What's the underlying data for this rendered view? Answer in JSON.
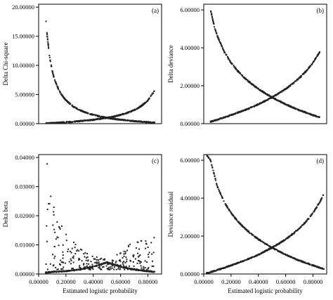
{
  "chart_data": [
    {
      "id": "a",
      "type": "scatter",
      "panel_label": "(a)",
      "xlabel": "",
      "ylabel": "Delta Chi-square",
      "xlim": [
        0.0,
        0.9
      ],
      "ylim": [
        0.0,
        20.5
      ],
      "yticks": [
        0,
        5,
        10,
        15,
        20
      ],
      "ytick_labels": [
        "0.00000",
        "5.00000",
        "10.00000",
        "15.00000",
        "20.00000"
      ],
      "xticks": [],
      "xtick_labels": [],
      "series": [
        {
          "curve": "chi_dec",
          "x": [
            0.05,
            0.06,
            0.08,
            0.1,
            0.12,
            0.15,
            0.18,
            0.2,
            0.25,
            0.3,
            0.35,
            0.4,
            0.45,
            0.5,
            0.55,
            0.6,
            0.65,
            0.7,
            0.75,
            0.8,
            0.85
          ],
          "y": [
            19.0,
            15.67,
            11.5,
            9.0,
            7.33,
            5.67,
            4.56,
            4.0,
            3.0,
            2.33,
            1.86,
            1.5,
            1.22,
            1.0,
            0.82,
            0.67,
            0.54,
            0.43,
            0.33,
            0.25,
            0.18
          ]
        },
        {
          "curve": "chi_inc",
          "x": [
            0.05,
            0.1,
            0.15,
            0.2,
            0.25,
            0.3,
            0.35,
            0.4,
            0.45,
            0.5,
            0.55,
            0.6,
            0.65,
            0.7,
            0.75,
            0.8,
            0.85
          ],
          "y": [
            0.05,
            0.11,
            0.18,
            0.25,
            0.33,
            0.43,
            0.54,
            0.67,
            0.82,
            1.0,
            1.22,
            1.5,
            1.86,
            2.33,
            3.0,
            4.0,
            5.67
          ]
        }
      ]
    },
    {
      "id": "b",
      "type": "scatter",
      "panel_label": "(b)",
      "xlabel": "",
      "ylabel": "Delta deviance",
      "xlim": [
        0.0,
        0.9
      ],
      "ylim": [
        0.0,
        6.3
      ],
      "yticks": [
        0,
        2,
        4,
        6
      ],
      "ytick_labels": [
        "0.00000",
        "2.00000",
        "4.00000",
        "6.00000"
      ],
      "xticks": [],
      "xtick_labels": [],
      "series": [
        {
          "curve": "dev_dec",
          "x": [
            0.05,
            0.08,
            0.1,
            0.15,
            0.2,
            0.25,
            0.3,
            0.35,
            0.4,
            0.45,
            0.5,
            0.55,
            0.6,
            0.65,
            0.7,
            0.75,
            0.8,
            0.85
          ],
          "y": [
            6.0,
            5.05,
            4.61,
            3.79,
            3.22,
            2.77,
            2.41,
            2.1,
            1.83,
            1.6,
            1.39,
            1.2,
            1.02,
            0.86,
            0.71,
            0.58,
            0.45,
            0.33
          ]
        },
        {
          "curve": "dev_inc",
          "x": [
            0.05,
            0.1,
            0.15,
            0.2,
            0.25,
            0.3,
            0.35,
            0.4,
            0.45,
            0.5,
            0.55,
            0.6,
            0.65,
            0.7,
            0.75,
            0.8,
            0.85
          ],
          "y": [
            0.1,
            0.21,
            0.33,
            0.45,
            0.58,
            0.71,
            0.86,
            1.02,
            1.2,
            1.39,
            1.6,
            1.83,
            2.1,
            2.41,
            2.77,
            3.22,
            3.79
          ]
        }
      ]
    },
    {
      "id": "c",
      "type": "scatter",
      "panel_label": "(c)",
      "xlabel": "Estimated logistic probability",
      "ylabel": "Delta beta",
      "xlim": [
        0.0,
        0.9
      ],
      "ylim": [
        0.0,
        0.041
      ],
      "yticks": [
        0,
        0.01,
        0.02,
        0.03,
        0.04
      ],
      "ytick_labels": [
        "0.00000",
        "0.01000",
        "0.02000",
        "0.03000",
        "0.04000"
      ],
      "xticks": [
        0,
        0.2,
        0.4,
        0.6,
        0.8
      ],
      "xtick_labels": [
        "0.00000",
        "0.20000",
        "0.40000",
        "0.60000",
        "0.80000"
      ],
      "series": [
        {
          "curve": "beta_low",
          "x": [
            0.05,
            0.1,
            0.2,
            0.3,
            0.4,
            0.5,
            0.6,
            0.7,
            0.8,
            0.85
          ],
          "y": [
            0.0005,
            0.0007,
            0.001,
            0.0015,
            0.0025,
            0.004,
            0.0025,
            0.0015,
            0.001,
            0.0007
          ]
        },
        {
          "curve": "beta_cloud",
          "x": [
            0.05,
            0.08,
            0.1,
            0.15,
            0.2,
            0.25,
            0.3,
            0.35,
            0.4,
            0.45,
            0.5,
            0.55,
            0.6,
            0.65,
            0.7,
            0.75,
            0.8,
            0.85
          ],
          "y": [
            0.04,
            0.035,
            0.03,
            0.018,
            0.013,
            0.01,
            0.008,
            0.006,
            0.005,
            0.004,
            0.004,
            0.005,
            0.006,
            0.008,
            0.01,
            0.011,
            0.013,
            0.015
          ]
        }
      ]
    },
    {
      "id": "d",
      "type": "scatter",
      "panel_label": "(d)",
      "xlabel": "Estimated logistic probability",
      "ylabel": "Deviance residual",
      "xlim": [
        0.0,
        0.9
      ],
      "ylim": [
        0.0,
        6.3
      ],
      "yticks": [
        0,
        2,
        4,
        6
      ],
      "ytick_labels": [
        "0.00000",
        "2.00000",
        "4.00000",
        "6.00000"
      ],
      "xticks": [
        0,
        0.2,
        0.4,
        0.6,
        0.8
      ],
      "xtick_labels": [
        "0.00000",
        "0.20000",
        "0.40000",
        "0.60000",
        "0.80000"
      ],
      "series": [
        {
          "curve": "dev_dec",
          "x": [
            0.02,
            0.05,
            0.1,
            0.15,
            0.2,
            0.25,
            0.3,
            0.35,
            0.4,
            0.45,
            0.5,
            0.55,
            0.6,
            0.65,
            0.7,
            0.75,
            0.8,
            0.85,
            0.88
          ],
          "y": [
            6.3,
            6.0,
            4.61,
            3.79,
            3.22,
            2.77,
            2.41,
            2.1,
            1.83,
            1.6,
            1.39,
            1.2,
            1.02,
            0.86,
            0.71,
            0.58,
            0.45,
            0.33,
            0.26
          ]
        },
        {
          "curve": "dev_inc",
          "x": [
            0.02,
            0.05,
            0.1,
            0.15,
            0.2,
            0.25,
            0.3,
            0.35,
            0.4,
            0.45,
            0.5,
            0.55,
            0.6,
            0.65,
            0.7,
            0.75,
            0.8,
            0.85,
            0.88
          ],
          "y": [
            0.04,
            0.1,
            0.21,
            0.33,
            0.45,
            0.58,
            0.71,
            0.86,
            1.02,
            1.2,
            1.39,
            1.6,
            1.83,
            2.1,
            2.41,
            2.77,
            3.22,
            3.79,
            4.24
          ]
        }
      ]
    }
  ]
}
